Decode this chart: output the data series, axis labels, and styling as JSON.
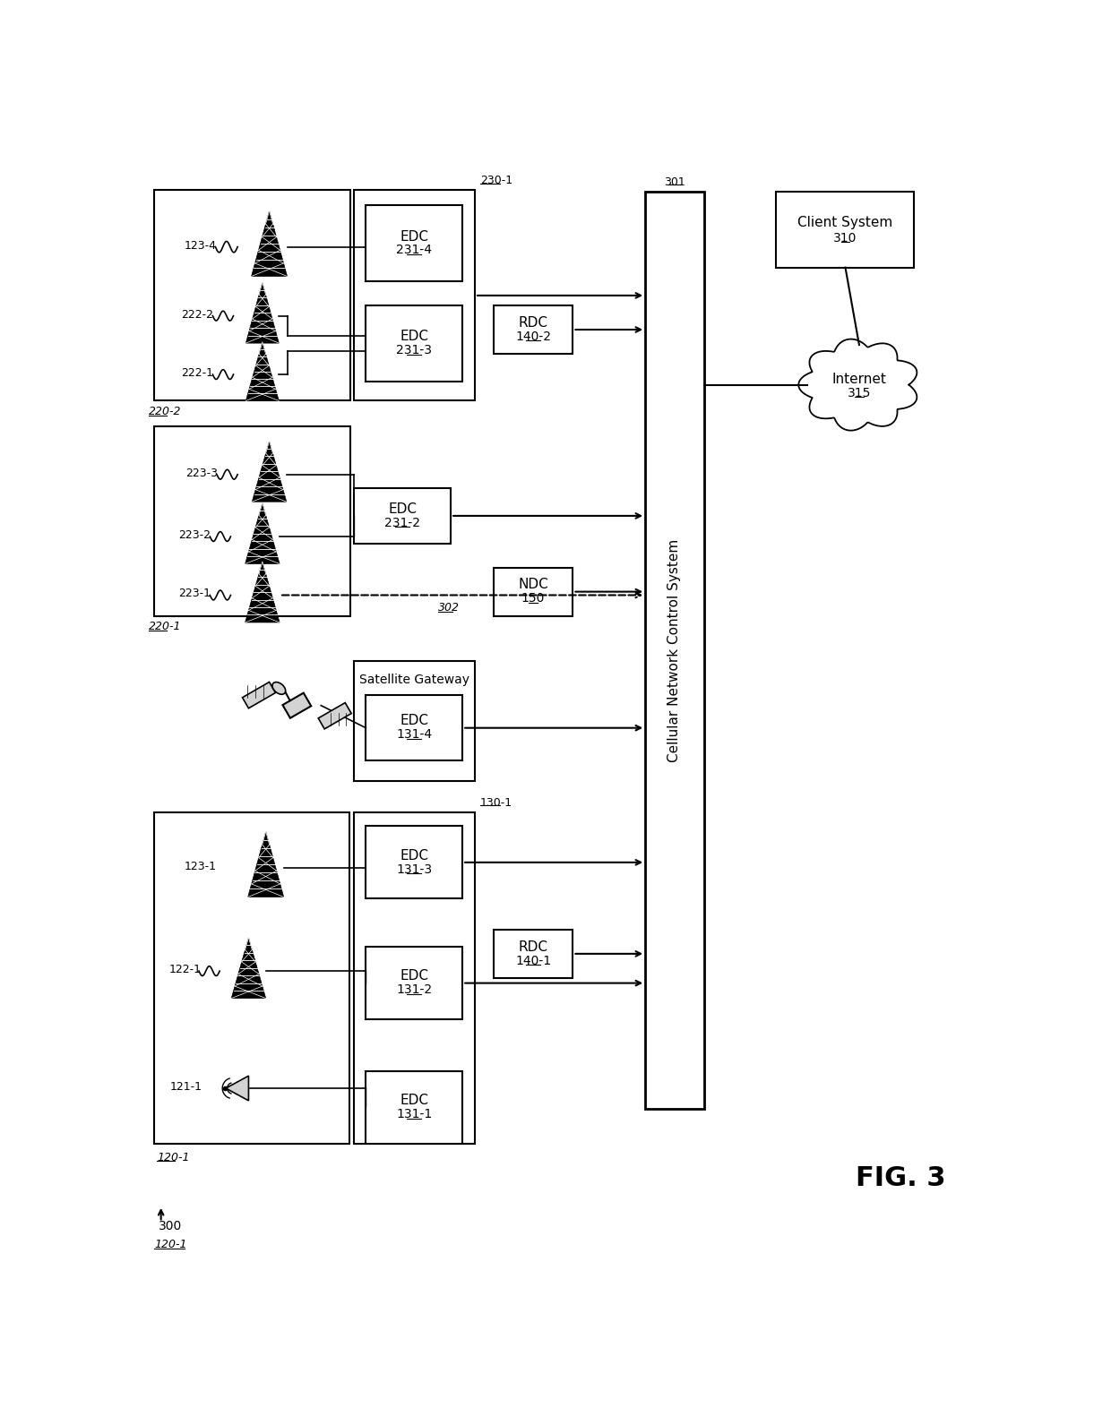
{
  "bg": "#ffffff",
  "fig_label": "FIG. 3",
  "cncs_label": "Cellular Network Control System",
  "cncs_ref": "301",
  "client_label": "Client System",
  "client_ref": "310",
  "internet_label": "Internet",
  "internet_ref": "315",
  "ndc_label": "NDC",
  "ndc_ref": "150",
  "rdc1_label": "RDC",
  "rdc1_ref": "140-1",
  "rdc2_label": "RDC",
  "rdc2_ref": "140-2",
  "sat_gw_label": "Satellite Gateway",
  "edc_labels": [
    "EDC",
    "EDC",
    "EDC",
    "EDC",
    "EDC",
    "EDC",
    "EDC"
  ],
  "edc_refs": [
    "131-1",
    "131-2",
    "131-3",
    "131-4",
    "231-2",
    "231-3",
    "231-4"
  ],
  "group_130_ref": "130-1",
  "group_230_ref": "230-1",
  "ref_220_1": "220-1",
  "ref_220_2": "220-2",
  "ref_300": "300",
  "ref_120_1": "120-1",
  "ref_302": "302",
  "nodes": [
    "121-1",
    "122-1",
    "123-1",
    "222-1",
    "222-2",
    "123-4",
    "223-1",
    "223-2",
    "223-3"
  ]
}
